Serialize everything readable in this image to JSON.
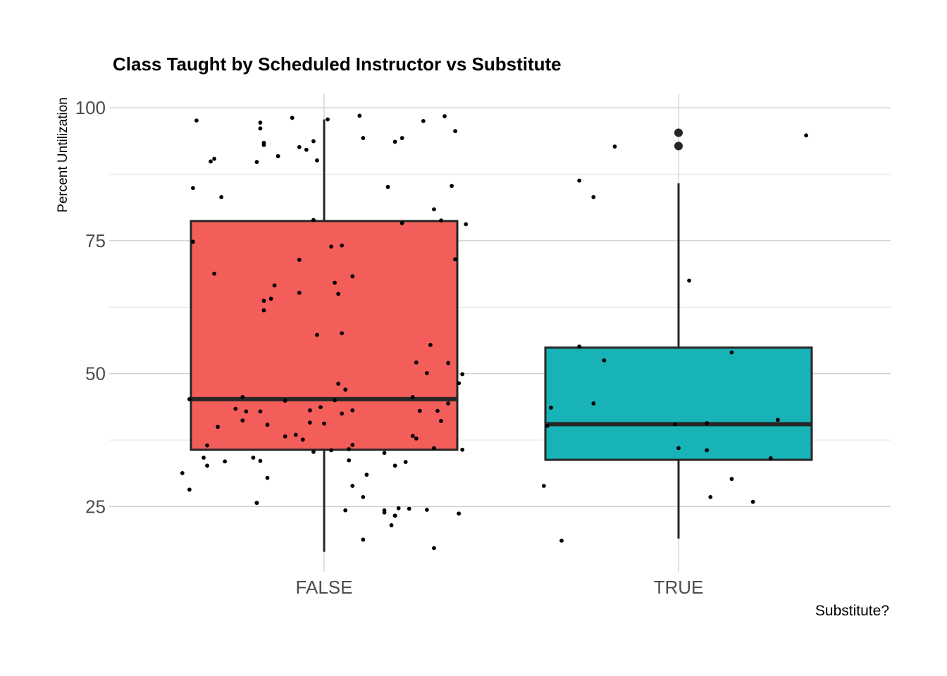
{
  "chart_data": {
    "type": "boxplot",
    "title": "Class Taught by Scheduled Instructor vs Substitute",
    "xlabel": "Substitute?",
    "ylabel": "Percent Untilization",
    "categories": [
      "FALSE",
      "TRUE"
    ],
    "y_ticks": [
      25,
      50,
      75,
      100
    ],
    "ylim": [
      12.5,
      102.5
    ],
    "grid": true,
    "boxes": [
      {
        "category": "FALSE",
        "color": "#F35E5A",
        "q1": 35.7,
        "median": 45.2,
        "q3": 78.7,
        "whisker_low": 16.5,
        "whisker_high": 97.8,
        "outliers": []
      },
      {
        "category": "TRUE",
        "color": "#17B3B7",
        "q1": 33.8,
        "median": 40.5,
        "q3": 54.9,
        "whisker_low": 19.0,
        "whisker_high": 85.8,
        "outliers": [
          95.3,
          92.8
        ]
      }
    ],
    "points": {
      "FALSE": [
        [
          -0.4,
          31.3
        ],
        [
          -0.38,
          28.2
        ],
        [
          -0.37,
          84.9
        ],
        [
          -0.37,
          74.8
        ],
        [
          -0.38,
          45.2
        ],
        [
          -0.36,
          97.6
        ],
        [
          -0.34,
          34.2
        ],
        [
          -0.33,
          32.7
        ],
        [
          -0.33,
          36.5
        ],
        [
          -0.32,
          89.9
        ],
        [
          -0.31,
          90.4
        ],
        [
          -0.31,
          68.8
        ],
        [
          -0.3,
          40.0
        ],
        [
          -0.29,
          83.2
        ],
        [
          -0.28,
          33.5
        ],
        [
          -0.25,
          43.4
        ],
        [
          -0.23,
          41.2
        ],
        [
          -0.23,
          45.6
        ],
        [
          -0.22,
          42.9
        ],
        [
          -0.2,
          34.2
        ],
        [
          -0.19,
          25.7
        ],
        [
          -0.19,
          25.7
        ],
        [
          -0.19,
          89.8
        ],
        [
          -0.18,
          97.2
        ],
        [
          -0.18,
          96.1
        ],
        [
          -0.18,
          42.9
        ],
        [
          -0.18,
          33.6
        ],
        [
          -0.17,
          63.7
        ],
        [
          -0.17,
          61.9
        ],
        [
          -0.17,
          93.4
        ],
        [
          -0.17,
          93.0
        ],
        [
          -0.16,
          30.4
        ],
        [
          -0.16,
          40.4
        ],
        [
          -0.15,
          64.1
        ],
        [
          -0.14,
          66.6
        ],
        [
          -0.13,
          90.9
        ],
        [
          -0.11,
          44.9
        ],
        [
          -0.11,
          38.2
        ],
        [
          -0.09,
          98.1
        ],
        [
          -0.08,
          38.5
        ],
        [
          -0.07,
          92.6
        ],
        [
          -0.07,
          71.4
        ],
        [
          -0.07,
          65.2
        ],
        [
          -0.06,
          37.6
        ],
        [
          -0.05,
          92.1
        ],
        [
          -0.04,
          43.1
        ],
        [
          -0.04,
          40.8
        ],
        [
          -0.03,
          35.3
        ],
        [
          -0.03,
          93.7
        ],
        [
          -0.03,
          78.9
        ],
        [
          -0.02,
          57.3
        ],
        [
          -0.02,
          90.1
        ],
        [
          -0.01,
          43.7
        ],
        [
          0.0,
          40.6
        ],
        [
          0.01,
          97.8
        ],
        [
          0.02,
          73.9
        ],
        [
          0.02,
          35.6
        ],
        [
          0.03,
          67.1
        ],
        [
          0.03,
          45.0
        ],
        [
          0.04,
          65.0
        ],
        [
          0.04,
          48.1
        ],
        [
          0.05,
          74.1
        ],
        [
          0.05,
          42.5
        ],
        [
          0.05,
          57.6
        ],
        [
          0.06,
          47.0
        ],
        [
          0.06,
          24.3
        ],
        [
          0.07,
          33.7
        ],
        [
          0.07,
          35.8
        ],
        [
          0.08,
          68.3
        ],
        [
          0.08,
          43.1
        ],
        [
          0.08,
          36.6
        ],
        [
          0.08,
          28.9
        ],
        [
          0.1,
          98.5
        ],
        [
          0.11,
          94.3
        ],
        [
          0.11,
          18.8
        ],
        [
          0.11,
          26.8
        ],
        [
          0.12,
          31.0
        ],
        [
          0.17,
          24.3
        ],
        [
          0.17,
          23.9
        ],
        [
          0.17,
          35.1
        ],
        [
          0.18,
          85.1
        ],
        [
          0.19,
          21.5
        ],
        [
          0.2,
          32.7
        ],
        [
          0.2,
          23.3
        ],
        [
          0.2,
          93.6
        ],
        [
          0.2,
          23.3
        ],
        [
          0.21,
          24.7
        ],
        [
          0.22,
          94.3
        ],
        [
          0.22,
          78.3
        ],
        [
          0.23,
          33.4
        ],
        [
          0.24,
          24.6
        ],
        [
          0.25,
          45.6
        ],
        [
          0.25,
          38.3
        ],
        [
          0.26,
          37.8
        ],
        [
          0.26,
          52.1
        ],
        [
          0.27,
          43.0
        ],
        [
          0.28,
          97.5
        ],
        [
          0.29,
          50.1
        ],
        [
          0.29,
          24.4
        ],
        [
          0.3,
          55.4
        ],
        [
          0.31,
          36.0
        ],
        [
          0.31,
          17.2
        ],
        [
          0.31,
          80.9
        ],
        [
          0.32,
          43.0
        ],
        [
          0.33,
          41.1
        ],
        [
          0.33,
          78.8
        ],
        [
          0.34,
          98.4
        ],
        [
          0.35,
          52.0
        ],
        [
          0.35,
          44.4
        ],
        [
          0.37,
          95.6
        ],
        [
          0.37,
          71.5
        ],
        [
          0.37,
          71.5
        ],
        [
          0.38,
          48.2
        ],
        [
          0.38,
          23.7
        ],
        [
          0.39,
          35.7
        ],
        [
          0.39,
          49.9
        ],
        [
          0.4,
          78.1
        ],
        [
          0.36,
          85.3
        ]
      ],
      "TRUE": [
        [
          -0.38,
          28.9
        ],
        [
          -0.37,
          40.2
        ],
        [
          -0.36,
          43.6
        ],
        [
          -0.33,
          18.6
        ],
        [
          -0.28,
          86.3
        ],
        [
          -0.28,
          55.1
        ],
        [
          -0.24,
          44.4
        ],
        [
          -0.24,
          83.2
        ],
        [
          -0.21,
          52.5
        ],
        [
          -0.18,
          92.7
        ],
        [
          -0.01,
          40.5
        ],
        [
          0.0,
          36.0
        ],
        [
          0.03,
          67.5
        ],
        [
          0.08,
          40.7
        ],
        [
          0.08,
          35.6
        ],
        [
          0.09,
          26.8
        ],
        [
          0.15,
          30.2
        ],
        [
          0.15,
          54.0
        ],
        [
          0.21,
          25.9
        ],
        [
          0.26,
          34.1
        ],
        [
          0.28,
          41.3
        ],
        [
          0.36,
          94.8
        ]
      ]
    }
  }
}
